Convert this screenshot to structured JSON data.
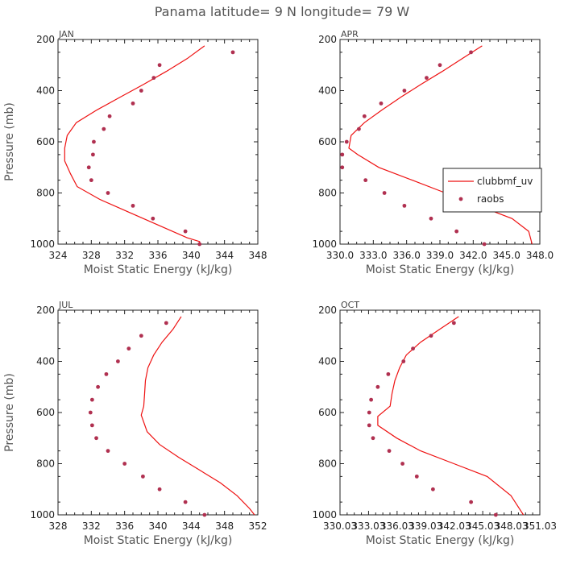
{
  "title": "Panama  latitude= 9 N longitude= 79 W",
  "colors": {
    "model": "#ee1111",
    "obs": "#b03050",
    "axis": "#222222"
  },
  "legend": {
    "model_label": "clubbmf_uv",
    "obs_label": "raobs"
  },
  "chart_data": [
    {
      "type": "line",
      "title": "JAN",
      "xlabel": "Moist Static Energy (kJ/kg)",
      "ylabel": "Pressure (mb)",
      "xlim": [
        324,
        348
      ],
      "ylim": [
        1000,
        200
      ],
      "xticks": [
        324,
        328,
        332,
        336,
        340,
        344,
        348
      ],
      "xtick_labels": [
        "324",
        "328",
        "332",
        "336",
        "340",
        "344",
        "348"
      ],
      "yticks": [
        200,
        400,
        600,
        800,
        1000
      ],
      "ytick_labels": [
        "200",
        "400",
        "600",
        "800",
        "1000"
      ],
      "series": [
        {
          "name": "clubbmf_uv",
          "kind": "line",
          "x": [
            341.6,
            339.5,
            337.0,
            334.3,
            331.5,
            328.7,
            326.2,
            325.1,
            324.8,
            324.8,
            325.5,
            326.3,
            329.0,
            332.5,
            336.0,
            339.5,
            341.0,
            341.0
          ],
          "y": [
            225,
            275,
            325,
            375,
            425,
            475,
            525,
            575,
            625,
            675,
            725,
            775,
            825,
            875,
            925,
            975,
            990,
            1000
          ]
        },
        {
          "name": "raobs",
          "kind": "scatter",
          "x": [
            345.0,
            336.2,
            335.5,
            334.0,
            333.0,
            330.2,
            329.5,
            328.3,
            328.2,
            327.7,
            328.0,
            330.0,
            333.0,
            335.4,
            339.3,
            341.0
          ],
          "y": [
            250,
            300,
            350,
            400,
            450,
            500,
            550,
            600,
            650,
            700,
            750,
            800,
            850,
            900,
            950,
            1000
          ]
        }
      ]
    },
    {
      "type": "line",
      "title": "APR",
      "xlabel": "Moist Static Energy (kJ/kg)",
      "ylabel": "Pressure (mb)",
      "xlim": [
        330.0,
        348.0
      ],
      "ylim": [
        1000,
        200
      ],
      "xticks": [
        330.0,
        333.0,
        336.0,
        339.0,
        342.0,
        345.0,
        348.0
      ],
      "xtick_labels": [
        "330.0",
        "333.0",
        "336.0",
        "339.0",
        "342.0",
        "345.0",
        "348.0"
      ],
      "yticks": [
        200,
        400,
        600,
        800,
        1000
      ],
      "ytick_labels": [
        "200",
        "400",
        "600",
        "800",
        "1000"
      ],
      "series": [
        {
          "name": "clubbmf_uv",
          "kind": "line",
          "x": [
            342.8,
            341.0,
            339.2,
            337.3,
            335.5,
            333.8,
            332.2,
            331.0,
            330.8,
            331.6,
            333.5,
            336.5,
            339.5,
            342.5,
            345.5,
            347.0,
            347.3
          ],
          "y": [
            225,
            275,
            325,
            375,
            425,
            475,
            525,
            575,
            625,
            650,
            700,
            750,
            800,
            850,
            900,
            950,
            1000
          ]
        },
        {
          "name": "raobs",
          "kind": "scatter",
          "x": [
            341.8,
            339.0,
            337.8,
            335.8,
            333.7,
            332.2,
            331.7,
            330.6,
            330.2,
            330.2,
            332.3,
            334.0,
            335.8,
            338.2,
            340.5,
            343.0
          ],
          "y": [
            250,
            300,
            350,
            400,
            450,
            500,
            550,
            600,
            650,
            700,
            750,
            800,
            850,
            900,
            950,
            1000
          ]
        }
      ]
    },
    {
      "type": "line",
      "title": "JUL",
      "xlabel": "Moist Static Energy (kJ/kg)",
      "ylabel": "Pressure (mb)",
      "xlim": [
        328,
        352
      ],
      "ylim": [
        1000,
        200
      ],
      "xticks": [
        328,
        332,
        336,
        340,
        344,
        348,
        352
      ],
      "xtick_labels": [
        "328",
        "332",
        "336",
        "340",
        "344",
        "348",
        "352"
      ],
      "yticks": [
        200,
        400,
        600,
        800,
        1000
      ],
      "ytick_labels": [
        "200",
        "400",
        "600",
        "800",
        "1000"
      ],
      "series": [
        {
          "name": "clubbmf_uv",
          "kind": "line",
          "x": [
            342.8,
            341.8,
            340.5,
            339.5,
            338.8,
            338.5,
            338.4,
            338.3,
            338.0,
            338.7,
            340.2,
            342.5,
            345.0,
            347.5,
            349.5,
            351.0,
            351.6
          ],
          "y": [
            225,
            275,
            325,
            375,
            425,
            475,
            525,
            575,
            610,
            675,
            725,
            775,
            825,
            875,
            925,
            975,
            1000
          ]
        },
        {
          "name": "raobs",
          "kind": "scatter",
          "x": [
            341.0,
            338.0,
            336.5,
            335.2,
            333.8,
            332.8,
            332.1,
            331.9,
            332.1,
            332.6,
            334.0,
            336.0,
            338.2,
            340.2,
            343.3,
            345.6
          ],
          "y": [
            250,
            300,
            350,
            400,
            450,
            500,
            550,
            600,
            650,
            700,
            750,
            800,
            850,
            900,
            950,
            1000
          ]
        }
      ]
    },
    {
      "type": "line",
      "title": "OCT",
      "xlabel": "Moist Static Energy (kJ/kg)",
      "ylabel": "Pressure (mb)",
      "xlim": [
        330.03,
        351.03
      ],
      "ylim": [
        1000,
        200
      ],
      "xticks": [
        330.03,
        333.03,
        336.03,
        339.03,
        342.03,
        345.03,
        348.03,
        351.03
      ],
      "xtick_labels": [
        "330.03",
        "333.03",
        "336.03",
        "339.03",
        "342.03",
        "345.03",
        "348.03",
        "351.03"
      ],
      "yticks": [
        200,
        400,
        600,
        800,
        1000
      ],
      "ytick_labels": [
        "200",
        "400",
        "600",
        "800",
        "1000"
      ],
      "series": [
        {
          "name": "clubbmf_uv",
          "kind": "line",
          "x": [
            342.5,
            340.5,
            338.5,
            337.0,
            336.3,
            335.8,
            335.5,
            335.3,
            334.0,
            334.0,
            336.0,
            338.5,
            342.0,
            345.5,
            348.0,
            349.3
          ],
          "y": [
            225,
            275,
            325,
            375,
            425,
            475,
            525,
            575,
            615,
            650,
            700,
            750,
            800,
            850,
            925,
            1000
          ]
        },
        {
          "name": "raobs",
          "kind": "scatter",
          "x": [
            342.0,
            339.6,
            337.7,
            336.7,
            335.1,
            334.0,
            333.3,
            333.1,
            333.1,
            333.5,
            335.2,
            336.6,
            338.1,
            339.8,
            343.8,
            346.4
          ],
          "y": [
            250,
            300,
            350,
            400,
            450,
            500,
            550,
            600,
            650,
            700,
            750,
            800,
            850,
            900,
            950,
            1000
          ]
        }
      ]
    }
  ]
}
